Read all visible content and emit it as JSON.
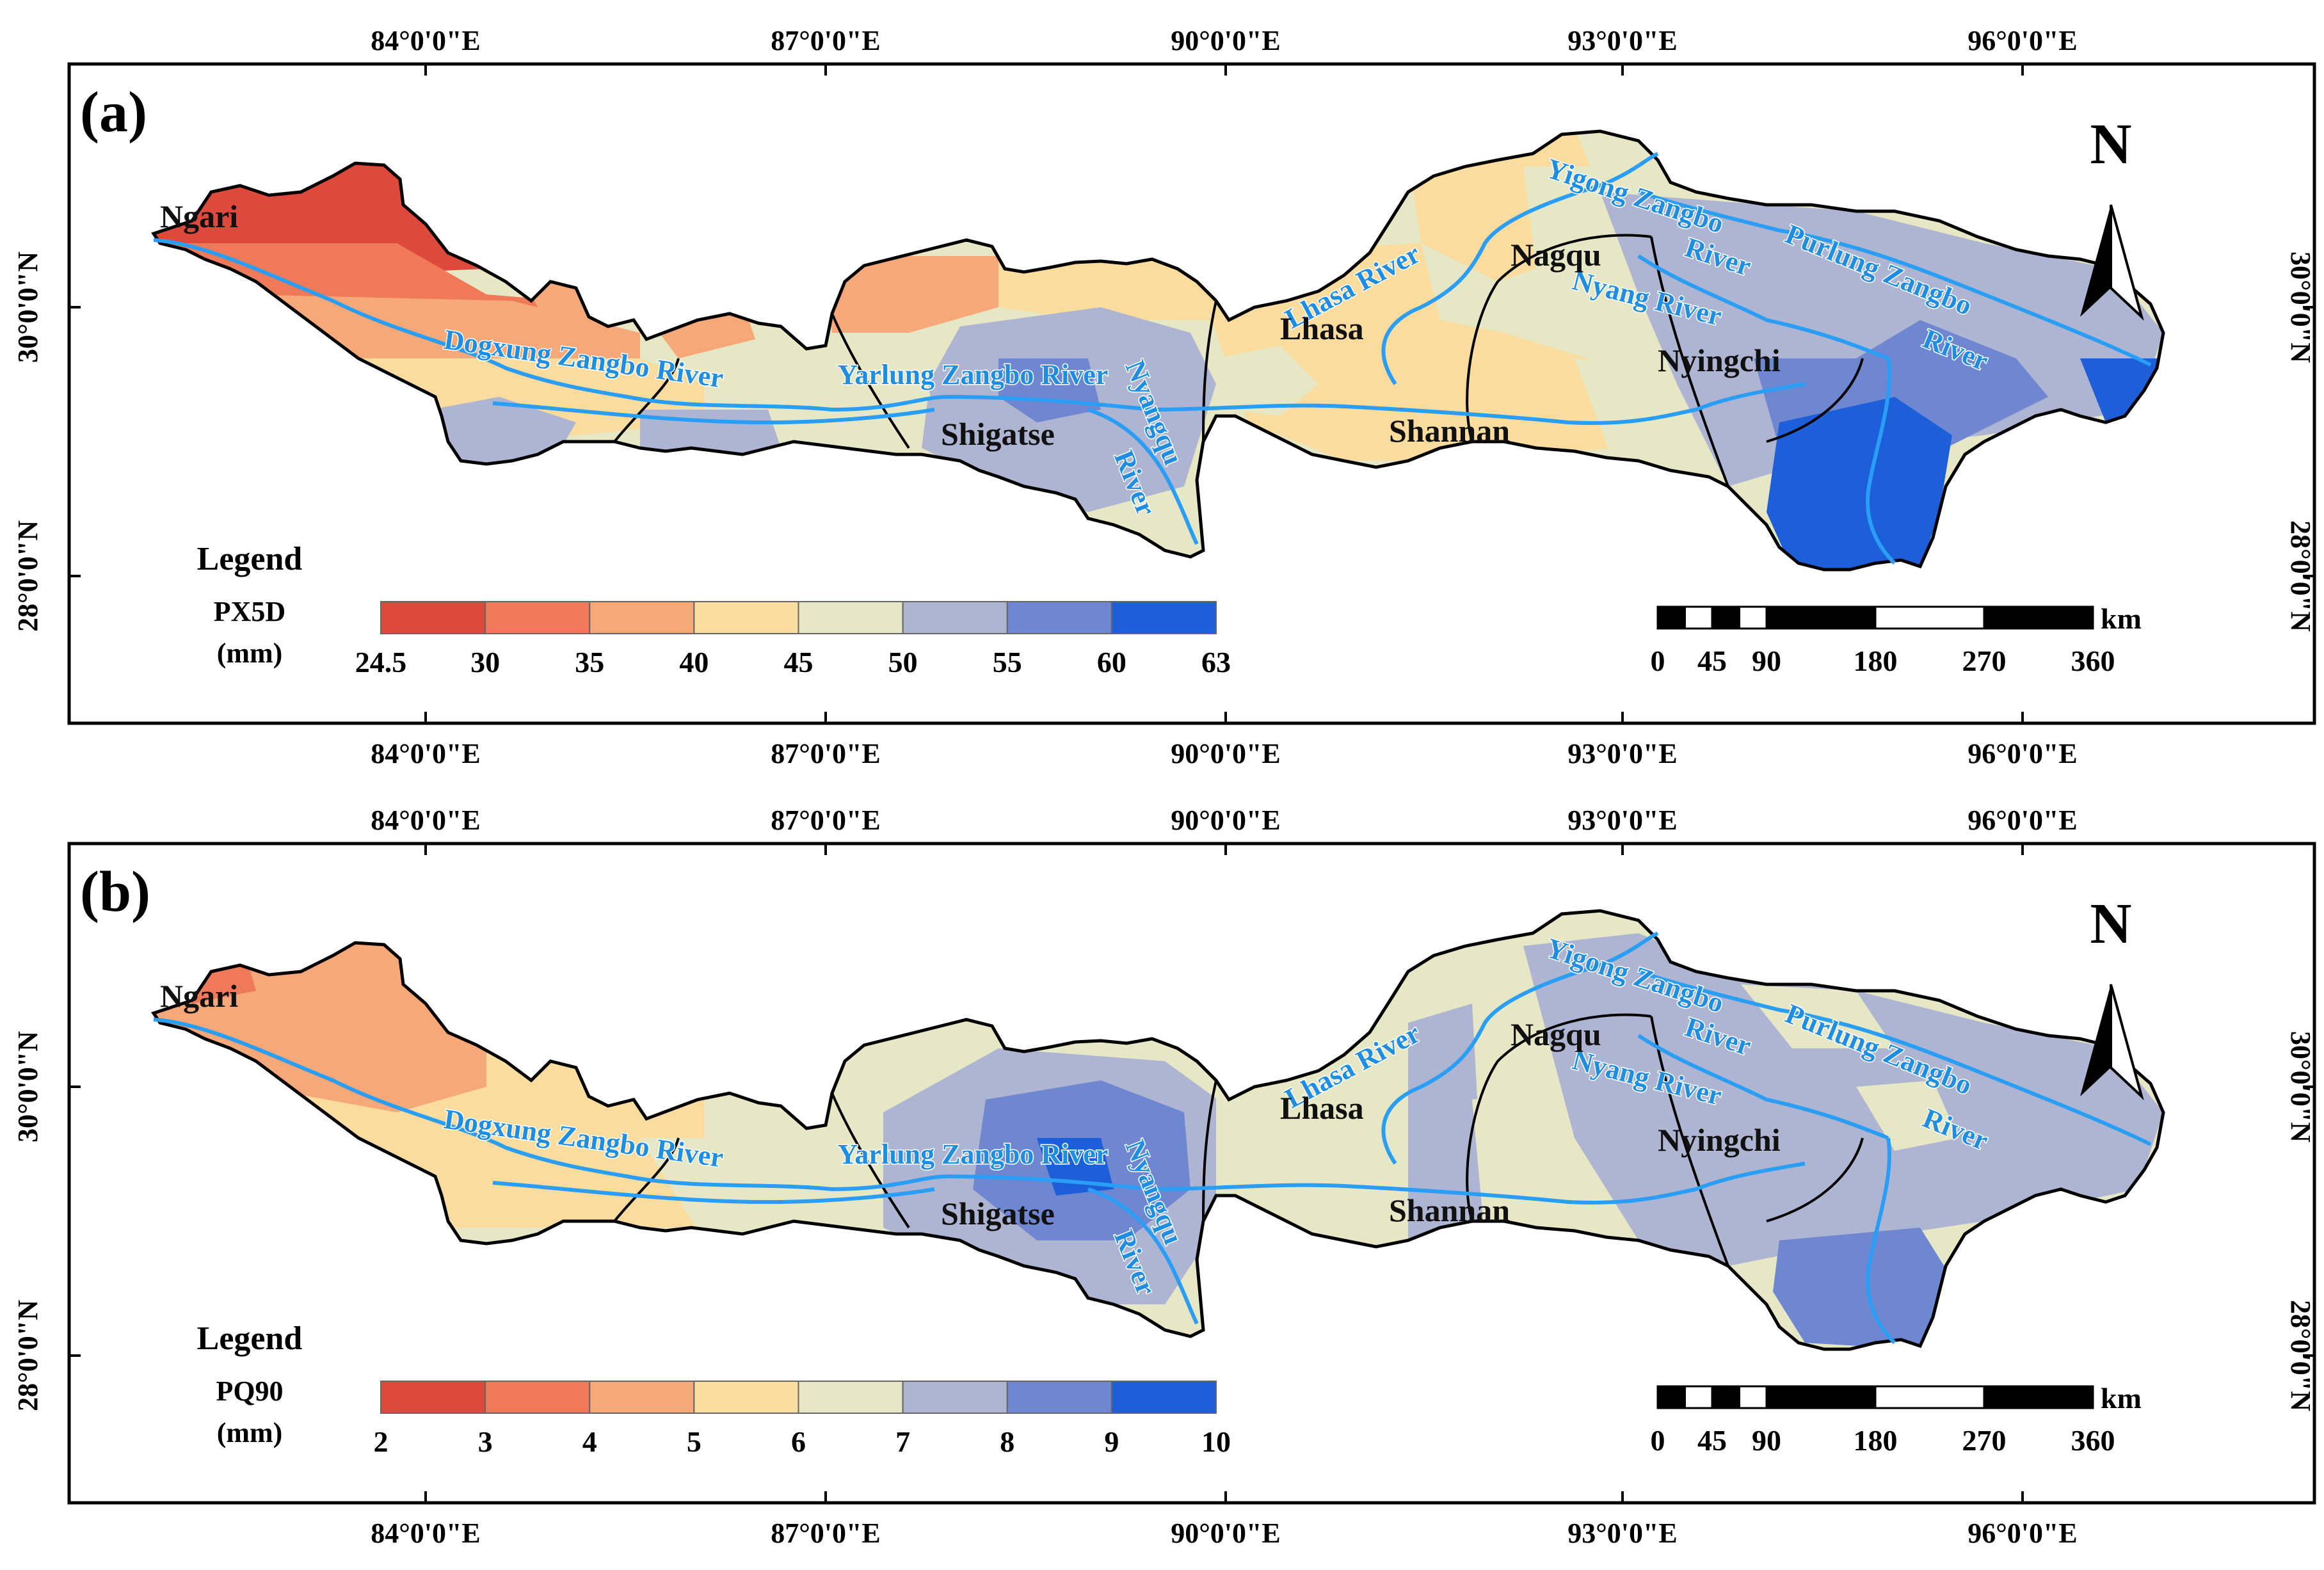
{
  "coordinate_labels": {
    "longitude": [
      "84°0'0\"E",
      "87°0'0\"E",
      "90°0'0\"E",
      "93°0'0\"E",
      "96°0'0\"E"
    ],
    "latitude": [
      "30°0'0\"N",
      "28°0'0\"N"
    ]
  },
  "north_label": "N",
  "scale_bar": {
    "unit": "km",
    "ticks": [
      "0",
      "45",
      "90",
      "180",
      "270",
      "360"
    ]
  },
  "cities": [
    "Ngari",
    "Nagqu",
    "Lhasa",
    "Nyingchi",
    "Shigatse",
    "Shannan"
  ],
  "rivers": {
    "dogxung": "Dogxung Zangbo River",
    "yarlung": "Yarlung Zangbo River",
    "lhasa": "Lhasa River",
    "yigong_1": "Yigong Zangbo",
    "yigong_2": "River",
    "purlung_1": "Purlung Zangbo",
    "purlung_2": "River",
    "nyang": "Nyang River",
    "nyangqu_1": "Nyangqu",
    "nyangqu_2": "River"
  },
  "panels": [
    {
      "label": "(a)",
      "legend_title": "Legend",
      "variable": "PX5D",
      "unit": "(mm)",
      "breaks": [
        "24.5",
        "30",
        "35",
        "40",
        "45",
        "50",
        "55",
        "60",
        "63"
      ],
      "class_colors": [
        "#dd4a3c",
        "#ef7a59",
        "#f6a878",
        "#fbdc9f",
        "#e6e7c4",
        "#aeb5d2",
        "#6f87d0",
        "#1c5fd8"
      ]
    },
    {
      "label": "(b)",
      "legend_title": "Legend",
      "variable": "PQ90",
      "unit": "(mm)",
      "breaks": [
        "2",
        "3",
        "4",
        "5",
        "6",
        "7",
        "8",
        "9",
        "10"
      ],
      "class_colors": [
        "#dd4a3c",
        "#ef7a59",
        "#f6a878",
        "#fbdc9f",
        "#e6e7c4",
        "#aeb5d2",
        "#6f87d0",
        "#1c5fd8"
      ]
    }
  ]
}
